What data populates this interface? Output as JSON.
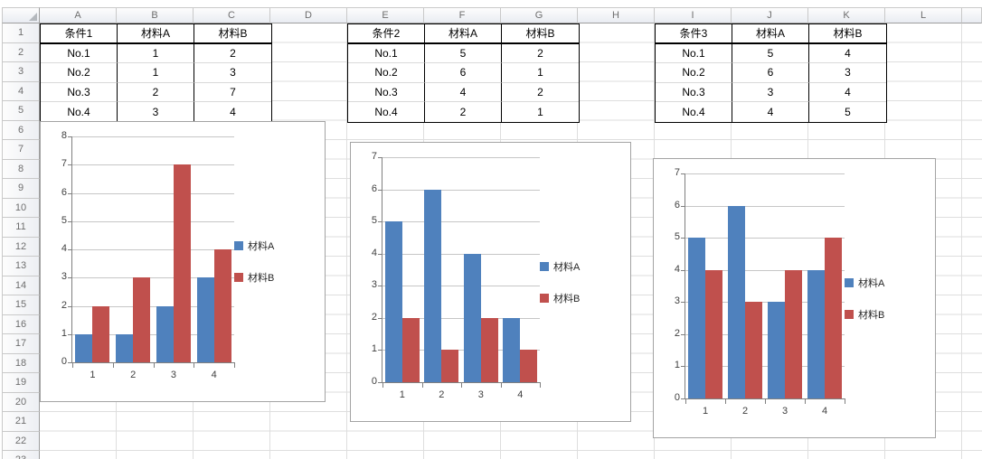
{
  "spreadsheet": {
    "column_headers": [
      "A",
      "B",
      "C",
      "D",
      "E",
      "F",
      "G",
      "H",
      "I",
      "J",
      "K",
      "L"
    ],
    "row_headers": [
      "1",
      "2",
      "3",
      "4",
      "5",
      "6",
      "7",
      "8",
      "9",
      "10",
      "11",
      "12",
      "13",
      "14",
      "15",
      "16",
      "17",
      "18",
      "19",
      "20",
      "21",
      "22",
      "23"
    ],
    "tables": [
      {
        "columns": [
          "条件1",
          "材料A",
          "材料B"
        ],
        "rows": [
          [
            "No.1",
            "1",
            "2"
          ],
          [
            "No.2",
            "1",
            "3"
          ],
          [
            "No.3",
            "2",
            "7"
          ],
          [
            "No.4",
            "3",
            "4"
          ]
        ]
      },
      {
        "columns": [
          "条件2",
          "材料A",
          "材料B"
        ],
        "rows": [
          [
            "No.1",
            "5",
            "2"
          ],
          [
            "No.2",
            "6",
            "1"
          ],
          [
            "No.3",
            "4",
            "2"
          ],
          [
            "No.4",
            "2",
            "1"
          ]
        ]
      },
      {
        "columns": [
          "条件3",
          "材料A",
          "材料B"
        ],
        "rows": [
          [
            "No.1",
            "5",
            "4"
          ],
          [
            "No.2",
            "6",
            "3"
          ],
          [
            "No.3",
            "3",
            "4"
          ],
          [
            "No.4",
            "4",
            "5"
          ]
        ]
      }
    ]
  },
  "chart_data": [
    {
      "type": "bar",
      "title": "",
      "xlabel": "",
      "ylabel": "",
      "categories": [
        "1",
        "2",
        "3",
        "4"
      ],
      "series": [
        {
          "name": "材料A",
          "color": "#4F81BD",
          "values": [
            1,
            1,
            2,
            3
          ]
        },
        {
          "name": "材料B",
          "color": "#C0504D",
          "values": [
            2,
            3,
            7,
            4
          ]
        }
      ],
      "ylim": [
        0,
        8
      ],
      "ytick_step": 1,
      "grid": true,
      "legend_position": "right"
    },
    {
      "type": "bar",
      "title": "",
      "xlabel": "",
      "ylabel": "",
      "categories": [
        "1",
        "2",
        "3",
        "4"
      ],
      "series": [
        {
          "name": "材料A",
          "color": "#4F81BD",
          "values": [
            5,
            6,
            4,
            2
          ]
        },
        {
          "name": "材料B",
          "color": "#C0504D",
          "values": [
            2,
            1,
            2,
            1
          ]
        }
      ],
      "ylim": [
        0,
        7
      ],
      "ytick_step": 1,
      "grid": true,
      "legend_position": "right"
    },
    {
      "type": "bar",
      "title": "",
      "xlabel": "",
      "ylabel": "",
      "categories": [
        "1",
        "2",
        "3",
        "4"
      ],
      "series": [
        {
          "name": "材料A",
          "color": "#4F81BD",
          "values": [
            5,
            6,
            3,
            4
          ]
        },
        {
          "name": "材料B",
          "color": "#C0504D",
          "values": [
            4,
            3,
            4,
            5
          ]
        }
      ],
      "ylim": [
        0,
        7
      ],
      "ytick_step": 1,
      "grid": true,
      "legend_position": "right"
    }
  ],
  "colors": {
    "series_a": "#4F81BD",
    "series_b": "#C0504D",
    "sheet_gridline": "#DEDEDE",
    "chart_gridline": "#C6C6C6",
    "axis_line": "#7F7F7F",
    "table_border": "#000000"
  }
}
